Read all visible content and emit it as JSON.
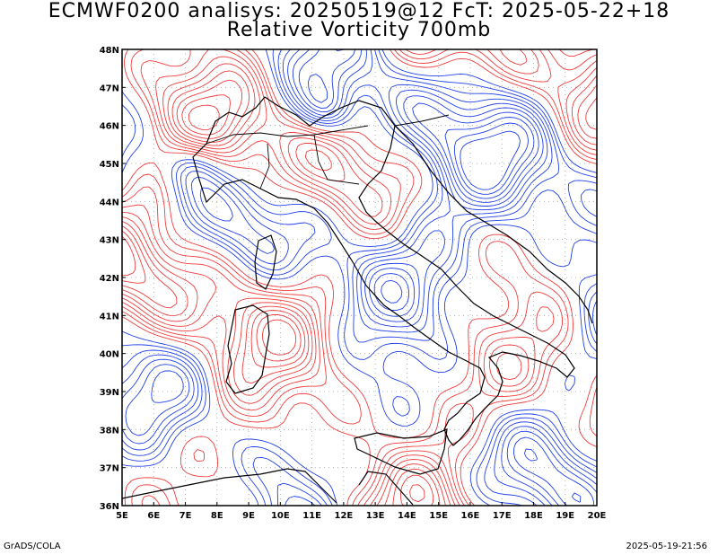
{
  "header": {
    "line1": "ECMWF0200 analisys: 20250519@12 FcT: 2025-05-22+18",
    "line2": "Relative Vorticity 700mb"
  },
  "footer": {
    "left": "GrADS/COLA",
    "right": "2025-05-19-21:56"
  },
  "map": {
    "lon_labels": [
      "5E",
      "6E",
      "7E",
      "8E",
      "9E",
      "10E",
      "11E",
      "12E",
      "13E",
      "14E",
      "15E",
      "16E",
      "17E",
      "18E",
      "19E",
      "20E"
    ],
    "lat_labels": [
      "48N",
      "47N",
      "46N",
      "45N",
      "44N",
      "43N",
      "42N",
      "41N",
      "40N",
      "39N",
      "38N",
      "37N",
      "36N"
    ],
    "lon_range": [
      5,
      20
    ],
    "lat_range": [
      36,
      48
    ],
    "colors": {
      "positive": "#f03c3c",
      "negative": "#2040e8",
      "coast": "#000000",
      "grid": "#a0a0a0"
    }
  }
}
